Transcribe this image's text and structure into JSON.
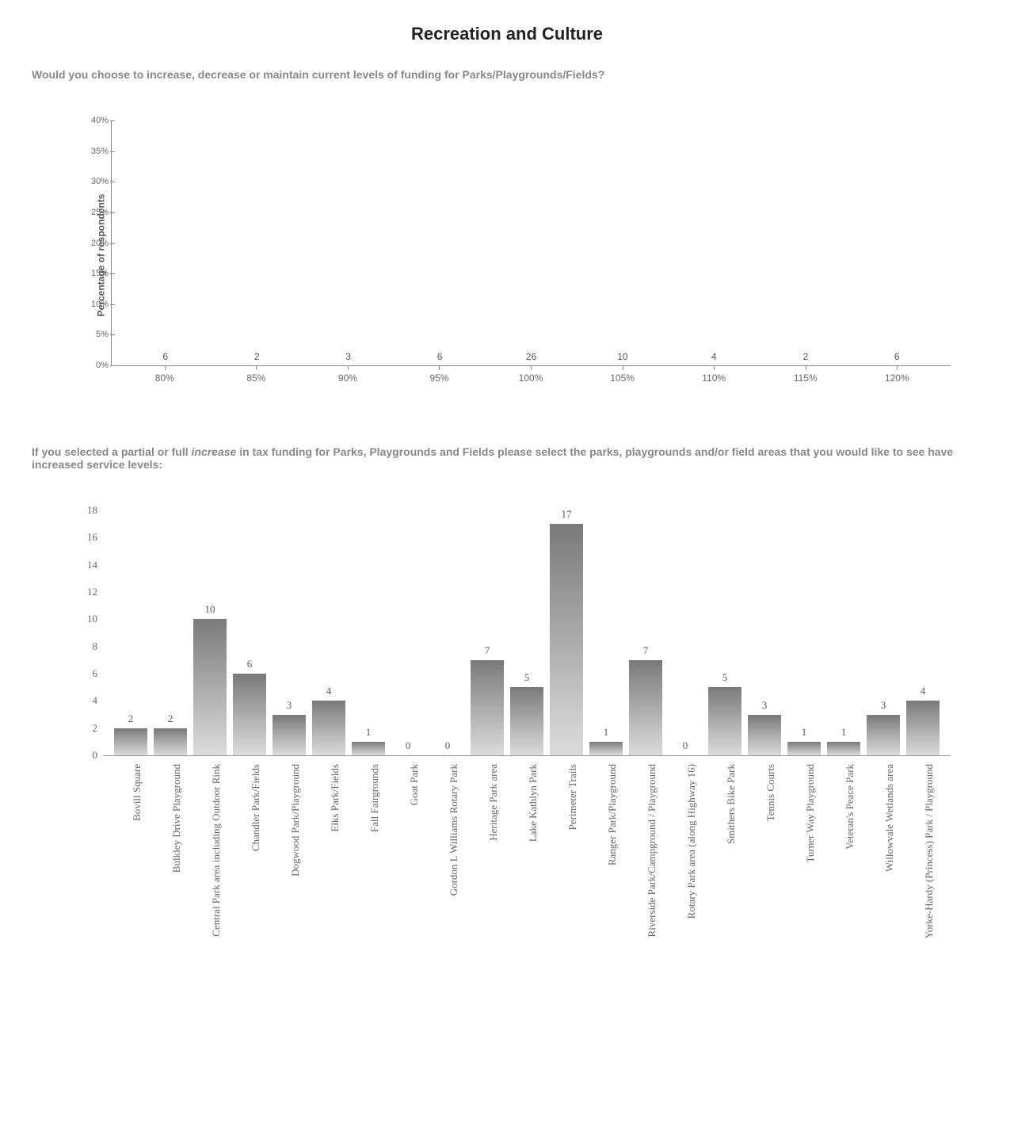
{
  "page_title": "Recreation and Culture",
  "question1": "Would you choose to increase, decrease or maintain current levels of funding for Parks/Playgrounds/Fields?",
  "question2_pre": "If you selected a partial or full ",
  "question2_ital": "increase",
  "question2_post": " in tax funding for Parks, Playgrounds and Fields please select the parks, playgrounds and/or field areas that you would like to see have increased service levels:",
  "chart1": {
    "type": "bar",
    "ylabel": "Percentage of respondents",
    "ylim": [
      0,
      40
    ],
    "ytick_step": 5,
    "categories": [
      "80%",
      "85%",
      "90%",
      "95%",
      "100%",
      "105%",
      "110%",
      "115%",
      "120%"
    ],
    "values": [
      6,
      2,
      3,
      6,
      26,
      10,
      4,
      2,
      6
    ],
    "heights_pct": [
      9,
      3,
      4.5,
      9,
      40,
      15.5,
      6,
      3,
      9
    ],
    "highlight_index": 4,
    "bar_color": "#e8e8e8",
    "highlight_color": "#6b6b6b",
    "centerline_color": "#333333",
    "axis_color": "#888888",
    "grid_color": "#ffffff",
    "label_fontsize": 12,
    "axis_fontsize": 11,
    "background_color": "#ffffff"
  },
  "chart2": {
    "type": "bar",
    "ylim": [
      0,
      18
    ],
    "ytick_step": 2,
    "categories": [
      "Bovill Square",
      "Bulkley Drive Playground",
      "Central Park area including Outdoor Rink",
      "Chandler Park/Fields",
      "Dogwood Park/Playground",
      "Elks Park/Fields",
      "Fall Fairgrounds",
      "Goat Park",
      "Gordon L Williams Rotary Park",
      "Heritage Park area",
      "Lake Kathlyn Park",
      "Perimeter Trails",
      "Ranger Park/Playground",
      "Riverside Park/Campground / Playground",
      "Rotary Park area (along Highway 16)",
      "Smithers Bike Park",
      "Tennis Courts",
      "Turner Way Playground",
      "Veteran's Peace Park",
      "Willowvale Wetlands area",
      "Yorke-Hardy (Princess) Park / Playground"
    ],
    "values": [
      2,
      2,
      10,
      6,
      3,
      4,
      1,
      0,
      0,
      7,
      5,
      17,
      1,
      7,
      0,
      5,
      3,
      1,
      1,
      3,
      4
    ],
    "gradient_top": "#7a7a7a",
    "gradient_bottom": "#dcdcdc",
    "axis_color": "#999999",
    "label_fontsize": 13,
    "font_family": "Times New Roman, serif",
    "background_color": "#ffffff"
  }
}
